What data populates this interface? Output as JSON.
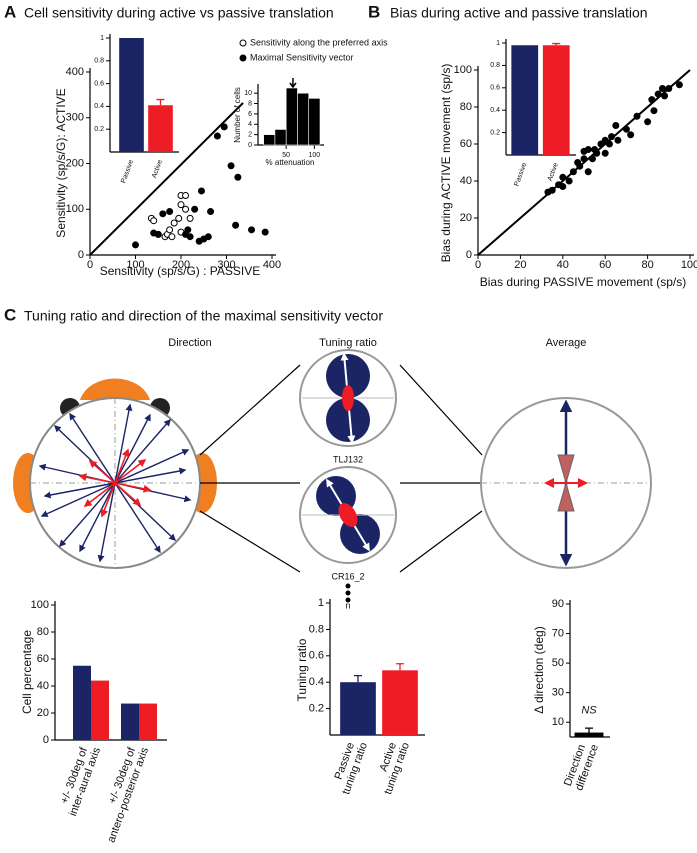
{
  "panels": {
    "A": {
      "label": "A",
      "title": "Cell sensitivity during active vs passive translation"
    },
    "B": {
      "label": "B",
      "title": "Bias during active and passive translation"
    },
    "C": {
      "label": "C",
      "title": "Tuning ratio and direction of the maximal sensitivity vector",
      "subtitles": [
        "Direction",
        "Tuning ratio",
        "Average"
      ],
      "cells": [
        "TLJ132",
        "CR16_2"
      ],
      "n": "n"
    }
  },
  "chart_data": [
    {
      "type": "scatter",
      "xlabel": "Sensitivity (sp/s/G) : PASSIVE",
      "ylabel": "Sensitivity  (sp/s/G): ACTIVE",
      "xlim": [
        0,
        400
      ],
      "ylim": [
        0,
        400
      ],
      "xticks": [
        0,
        100,
        200,
        300,
        400
      ],
      "yticks": [
        0,
        100,
        200,
        300,
        400
      ],
      "series": [
        {
          "name": "Sensitivity along the preferred axis",
          "marker": "open",
          "color": "#000000",
          "x": [
            135,
            140,
            150,
            165,
            170,
            175,
            180,
            195,
            200,
            200,
            210,
            200,
            220,
            210,
            185
          ],
          "y": [
            80,
            75,
            45,
            40,
            45,
            55,
            40,
            80,
            110,
            130,
            130,
            50,
            80,
            100,
            70
          ]
        },
        {
          "name": "Maximal Sensitivity vector",
          "marker": "filled",
          "color": "#000000",
          "x": [
            100,
            140,
            150,
            160,
            175,
            210,
            220,
            230,
            240,
            245,
            260,
            265,
            280,
            295,
            310,
            320,
            325,
            355,
            385,
            215,
            250
          ],
          "y": [
            22,
            48,
            45,
            90,
            95,
            45,
            40,
            100,
            30,
            140,
            40,
            95,
            260,
            280,
            195,
            65,
            170,
            55,
            50,
            55,
            35
          ]
        }
      ]
    },
    {
      "type": "bar",
      "categories": [
        "Passive",
        "Active"
      ],
      "values": [
        1,
        0.41
      ],
      "errors": [
        0,
        0.05
      ],
      "colors": [
        "#1b2465",
        "#ee1c25"
      ],
      "ylim": [
        0,
        1
      ],
      "yticks": [
        0.2,
        0.4,
        0.6,
        0.8,
        1
      ],
      "label_style": "rotated"
    },
    {
      "type": "histogram",
      "xlabel": "% attenuation",
      "ylabel": "Number of cells",
      "bins": [
        10,
        30,
        50,
        70,
        90,
        110
      ],
      "counts": [
        2,
        3,
        11,
        10,
        9
      ],
      "color": "#000000",
      "xlim": [
        0,
        110
      ],
      "ylim": [
        0,
        11
      ],
      "xticks": [
        50,
        100
      ],
      "yticks": [
        0,
        2,
        4,
        6,
        8,
        10
      ],
      "marker_x": 62
    },
    {
      "type": "scatter",
      "xlabel": "Bias during PASSIVE movement (sp/s)",
      "ylabel": "Bias during ACTIVE movement (sp/s)",
      "xlim": [
        0,
        100
      ],
      "ylim": [
        0,
        100
      ],
      "xticks": [
        0,
        20,
        40,
        60,
        80,
        100
      ],
      "yticks": [
        0,
        20,
        40,
        60,
        80,
        100
      ],
      "series": [
        {
          "marker": "filled",
          "color": "#000000",
          "x": [
            33,
            35,
            38,
            40,
            40,
            43,
            45,
            47,
            48,
            50,
            50,
            52,
            52,
            54,
            55,
            56,
            58,
            60,
            60,
            62,
            63,
            65,
            66,
            70,
            72,
            75,
            80,
            82,
            83,
            85,
            87,
            88,
            90,
            95
          ],
          "y": [
            34,
            35,
            38,
            37,
            42,
            40,
            45,
            50,
            48,
            52,
            56,
            57,
            45,
            52,
            57,
            55,
            60,
            62,
            55,
            60,
            64,
            70,
            62,
            68,
            65,
            75,
            72,
            84,
            78,
            87,
            90,
            86,
            90,
            92
          ]
        }
      ]
    },
    {
      "type": "bar",
      "categories": [
        "Passive",
        "Active"
      ],
      "values": [
        0.98,
        0.98
      ],
      "errors": [
        0,
        0.015
      ],
      "colors": [
        "#1b2465",
        "#ee1c25"
      ],
      "ylim": [
        0,
        1
      ],
      "yticks": [
        0.2,
        0.4,
        0.6,
        0.8,
        1
      ],
      "label_style": "rotated"
    },
    {
      "type": "bar",
      "ylabel": "Cell percentage",
      "categories": [
        [
          "+/- 30deg of",
          "inter-aural axis"
        ],
        [
          "+/- 30deg of",
          "antero-posterior axis"
        ]
      ],
      "series": [
        {
          "color": "#1b2465",
          "values": [
            55,
            27
          ]
        },
        {
          "color": "#ee1c25",
          "values": [
            44,
            27
          ]
        }
      ],
      "ylim": [
        0,
        100
      ],
      "yticks": [
        0,
        20,
        40,
        60,
        80,
        100
      ]
    },
    {
      "type": "bar",
      "ylabel": "Tuning ratio",
      "categories": [
        [
          "Passive",
          "tuning ratio"
        ],
        [
          "Active",
          "tuning ratio"
        ]
      ],
      "values": [
        0.4,
        0.49
      ],
      "errors": [
        0.05,
        0.05
      ],
      "colors": [
        "#1b2465",
        "#ee1c25"
      ],
      "ylim": [
        0,
        1
      ],
      "yticks": [
        0.2,
        0.4,
        0.6,
        0.8,
        1
      ]
    },
    {
      "type": "bar",
      "ylabel": "Δ direction (deg)",
      "categories": [
        [
          "Direction",
          "difference"
        ]
      ],
      "values": [
        3
      ],
      "errors": [
        3
      ],
      "colors": [
        "#000000"
      ],
      "annotation": "NS",
      "ylim": [
        0,
        90
      ],
      "yticks": [
        10,
        30,
        50,
        70,
        90
      ]
    }
  ]
}
